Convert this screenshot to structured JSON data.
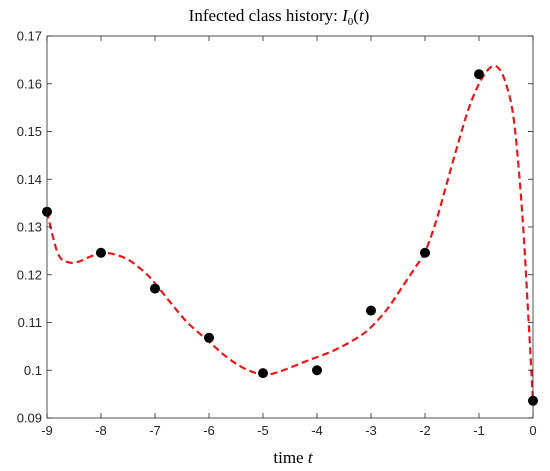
{
  "chart_data": {
    "type": "scatter",
    "title": {
      "prefix": "Infected class history: ",
      "var": "I",
      "sub": "0",
      "arg_open": "(",
      "arg_var": "t",
      "arg_close": ")"
    },
    "xlabel": {
      "prefix": "time ",
      "var": "t"
    },
    "ylabel": "",
    "xlim": [
      -9,
      0
    ],
    "ylim": [
      0.09,
      0.17
    ],
    "xticks": [
      "-9",
      "-8",
      "-7",
      "-6",
      "-5",
      "-4",
      "-3",
      "-2",
      "-1",
      "0"
    ],
    "yticks": [
      "0.09",
      "0.1",
      "0.11",
      "0.12",
      "0.13",
      "0.14",
      "0.15",
      "0.16",
      "0.17"
    ],
    "grid": false,
    "series": [
      {
        "kind": "points",
        "color": "#000000",
        "points": [
          {
            "x": -9,
            "y": 0.1332
          },
          {
            "x": -8,
            "y": 0.1246
          },
          {
            "x": -7,
            "y": 0.1171
          },
          {
            "x": -6,
            "y": 0.1068
          },
          {
            "x": -5,
            "y": 0.0994
          },
          {
            "x": -4,
            "y": 0.1
          },
          {
            "x": -3,
            "y": 0.1125
          },
          {
            "x": -2,
            "y": 0.1246
          },
          {
            "x": -1,
            "y": 0.162
          },
          {
            "x": 0,
            "y": 0.0936
          }
        ]
      },
      {
        "kind": "dashed-curve",
        "color": "#e31a1c",
        "points": [
          {
            "x": -9.0,
            "y": 0.1332
          },
          {
            "x": -8.8,
            "y": 0.1245
          },
          {
            "x": -8.6,
            "y": 0.1226
          },
          {
            "x": -8.4,
            "y": 0.1228
          },
          {
            "x": -8.2,
            "y": 0.1238
          },
          {
            "x": -8.0,
            "y": 0.1245
          },
          {
            "x": -7.8,
            "y": 0.1244
          },
          {
            "x": -7.5,
            "y": 0.1232
          },
          {
            "x": -7.2,
            "y": 0.1206
          },
          {
            "x": -7.0,
            "y": 0.1182
          },
          {
            "x": -6.7,
            "y": 0.114
          },
          {
            "x": -6.4,
            "y": 0.11
          },
          {
            "x": -6.0,
            "y": 0.106
          },
          {
            "x": -5.7,
            "y": 0.103
          },
          {
            "x": -5.4,
            "y": 0.1007
          },
          {
            "x": -5.1,
            "y": 0.0993
          },
          {
            "x": -4.9,
            "y": 0.0991
          },
          {
            "x": -4.6,
            "y": 0.1001
          },
          {
            "x": -4.2,
            "y": 0.1019
          },
          {
            "x": -3.8,
            "y": 0.1036
          },
          {
            "x": -3.5,
            "y": 0.1052
          },
          {
            "x": -3.2,
            "y": 0.1072
          },
          {
            "x": -3.0,
            "y": 0.109
          },
          {
            "x": -2.7,
            "y": 0.1128
          },
          {
            "x": -2.4,
            "y": 0.1178
          },
          {
            "x": -2.2,
            "y": 0.1212
          },
          {
            "x": -2.0,
            "y": 0.1248
          },
          {
            "x": -1.8,
            "y": 0.131
          },
          {
            "x": -1.6,
            "y": 0.139
          },
          {
            "x": -1.4,
            "y": 0.147
          },
          {
            "x": -1.2,
            "y": 0.1545
          },
          {
            "x": -1.0,
            "y": 0.16
          },
          {
            "x": -0.8,
            "y": 0.1633
          },
          {
            "x": -0.65,
            "y": 0.1634
          },
          {
            "x": -0.5,
            "y": 0.16
          },
          {
            "x": -0.35,
            "y": 0.152
          },
          {
            "x": -0.2,
            "y": 0.133
          },
          {
            "x": -0.08,
            "y": 0.11
          },
          {
            "x": 0.0,
            "y": 0.0936
          }
        ]
      }
    ]
  }
}
